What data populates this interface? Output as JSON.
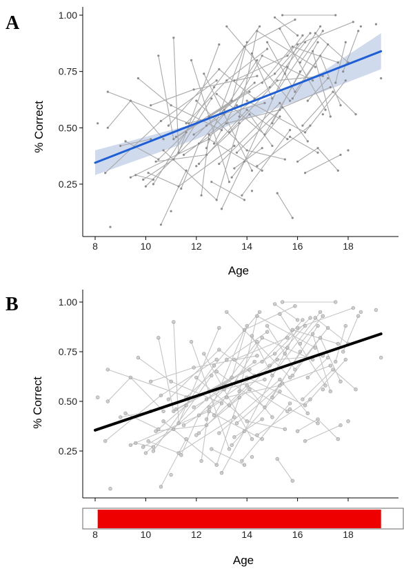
{
  "panels": [
    {
      "label": "A",
      "ylabel": "% Correct",
      "xlabel": "Age",
      "x_ticks": [
        "8",
        "10",
        "12",
        "14",
        "16",
        "18"
      ],
      "y_ticks": [
        "0.25",
        "0.50",
        "0.75",
        "1.00"
      ]
    },
    {
      "label": "B",
      "ylabel": "% Correct",
      "xlabel": "Age",
      "x_ticks": [
        "8",
        "10",
        "12",
        "14",
        "16",
        "18"
      ],
      "y_ticks": [
        "0.25",
        "0.50",
        "0.75",
        "1.00"
      ]
    }
  ],
  "colors": {
    "panel_a_points": "#8c8c8c",
    "panel_a_lines": "#a8a8a8",
    "panel_a_fit": "#1f5fd6",
    "panel_a_ci": "#c8d4ea",
    "panel_b_points": "#bdbdbd",
    "panel_b_lines": "#c4c4c4",
    "panel_b_fit": "#000000",
    "age_range_bar": "#ee0000"
  },
  "chart_data": [
    {
      "type": "scatter",
      "ylabel": "% Correct",
      "xlabel": "Age",
      "xlim": [
        7.7,
        19.5
      ],
      "ylim": [
        0.03,
        1.03
      ],
      "x_ticks": [
        8,
        10,
        12,
        14,
        16,
        18
      ],
      "y_ticks": [
        0.25,
        0.5,
        0.75,
        1.0
      ],
      "grid": false,
      "points": "longitudinal observations",
      "subjects": [
        {
          "x": [
            8.1
          ],
          "y": [
            0.52
          ]
        },
        {
          "x": [
            8.5,
            11.7,
            14.7
          ],
          "y": [
            0.66,
            0.52,
            0.61
          ]
        },
        {
          "x": [
            8.6
          ],
          "y": [
            0.06
          ]
        },
        {
          "x": [
            8.4,
            10.6,
            12.8
          ],
          "y": [
            0.3,
            0.53,
            0.71
          ]
        },
        {
          "x": [
            8.5,
            9.4,
            10.7
          ],
          "y": [
            0.5,
            0.62,
            0.45
          ]
        },
        {
          "x": [
            9.2,
            10.5,
            11.6
          ],
          "y": [
            0.44,
            0.36,
            0.48
          ]
        },
        {
          "x": [
            9.4,
            12.5,
            14.6
          ],
          "y": [
            0.28,
            0.45,
            0.31
          ]
        },
        {
          "x": [
            9.7,
            11.0,
            13.0
          ],
          "y": [
            0.72,
            0.6,
            0.49
          ]
        },
        {
          "x": [
            9.9,
            11.1,
            12.6
          ],
          "y": [
            0.27,
            0.36,
            0.63
          ]
        },
        {
          "x": [
            10.0,
            12.4,
            14.3
          ],
          "y": [
            0.24,
            0.51,
            0.7
          ]
        },
        {
          "x": [
            10.1,
            11.3,
            13.5
          ],
          "y": [
            0.3,
            0.24,
            0.42
          ]
        },
        {
          "x": [
            10.2,
            11.9,
            14.4
          ],
          "y": [
            0.6,
            0.67,
            0.73
          ]
        },
        {
          "x": [
            10.3,
            12.7,
            14.5
          ],
          "y": [
            0.25,
            0.68,
            0.95
          ]
        },
        {
          "x": [
            10.4,
            12.4,
            14.1,
            15.0
          ],
          "y": [
            0.35,
            0.38,
            0.56,
            0.42
          ]
        },
        {
          "x": [
            10.5,
            11.1,
            14.1
          ],
          "y": [
            0.82,
            0.45,
            0.66
          ]
        },
        {
          "x": [
            10.6,
            11.6
          ],
          "y": [
            0.07,
            0.31
          ]
        },
        {
          "x": [
            10.7,
            12.8,
            13.7
          ],
          "y": [
            0.4,
            0.18,
            0.52
          ]
        },
        {
          "x": [
            10.9,
            12.9,
            14.3
          ],
          "y": [
            0.51,
            0.76,
            0.63
          ]
        },
        {
          "x": [
            11.1,
            11.3,
            12.9
          ],
          "y": [
            0.9,
            0.39,
            0.87
          ]
        },
        {
          "x": [
            11.2,
            13.4,
            14.0
          ],
          "y": [
            0.46,
            0.62,
            0.88
          ]
        },
        {
          "x": [
            11.4,
            12.1,
            13.1
          ],
          "y": [
            0.23,
            0.43,
            0.56
          ]
        },
        {
          "x": [
            11.5,
            13.2,
            15.3
          ],
          "y": [
            0.38,
            0.52,
            0.58
          ]
        },
        {
          "x": [
            11.6,
            13.2,
            14.8
          ],
          "y": [
            0.52,
            0.71,
            0.85
          ]
        },
        {
          "x": [
            11.8,
            13.3
          ],
          "y": [
            0.8,
            0.26
          ]
        },
        {
          "x": [
            11.9,
            13.6
          ],
          "y": [
            0.47,
            0.6
          ]
        },
        {
          "x": [
            12.0,
            14.0,
            15.5
          ],
          "y": [
            0.62,
            0.4,
            0.36
          ]
        },
        {
          "x": [
            12.1,
            14.0,
            15.6
          ],
          "y": [
            0.34,
            0.58,
            0.45
          ]
        },
        {
          "x": [
            12.2,
            12.5,
            14.9,
            16.3
          ],
          "y": [
            0.2,
            0.47,
            0.68,
            0.88
          ]
        },
        {
          "x": [
            12.3,
            14.2
          ],
          "y": [
            0.74,
            0.31
          ]
        },
        {
          "x": [
            12.4,
            13.9,
            15.9
          ],
          "y": [
            0.41,
            0.86,
            0.98
          ]
        },
        {
          "x": [
            12.5,
            15.1,
            16.5
          ],
          "y": [
            0.55,
            0.74,
            0.92
          ]
        },
        {
          "x": [
            12.6,
            13.9
          ],
          "y": [
            0.26,
            0.18
          ]
        },
        {
          "x": [
            12.7,
            14.6,
            16.6
          ],
          "y": [
            0.43,
            0.82,
            0.71
          ]
        },
        {
          "x": [
            12.8,
            14.7,
            16.8
          ],
          "y": [
            0.65,
            0.47,
            0.88
          ]
        },
        {
          "x": [
            12.9,
            15.3,
            16.4
          ],
          "y": [
            0.34,
            0.61,
            0.44
          ]
        },
        {
          "x": [
            13.0,
            13.9,
            15.6
          ],
          "y": [
            0.14,
            0.35,
            0.77
          ]
        },
        {
          "x": [
            13.1,
            14.4
          ],
          "y": [
            0.58,
            0.8
          ]
        },
        {
          "x": [
            13.2,
            15.7
          ],
          "y": [
            0.95,
            0.62
          ]
        },
        {
          "x": [
            13.3,
            15.2,
            17.0
          ],
          "y": [
            0.48,
            0.71,
            0.73
          ]
        },
        {
          "x": [
            13.4,
            15.3
          ],
          "y": [
            0.28,
            0.55
          ]
        },
        {
          "x": [
            13.5,
            15.6,
            16.2
          ],
          "y": [
            0.71,
            0.82,
            0.91
          ]
        },
        {
          "x": [
            13.6,
            15.4,
            17.3
          ],
          "y": [
            0.39,
            0.59,
            0.68
          ]
        },
        {
          "x": [
            13.7,
            14.4,
            16.7
          ],
          "y": [
            0.55,
            0.93,
            0.77
          ]
        },
        {
          "x": [
            13.8,
            15.7
          ],
          "y": [
            0.2,
            0.49
          ]
        },
        {
          "x": [
            14.0,
            16.3,
            17.9
          ],
          "y": [
            0.62,
            0.48,
            0.71
          ]
        },
        {
          "x": [
            14.2,
            15.0,
            16.9
          ],
          "y": [
            0.83,
            0.63,
            0.95
          ]
        },
        {
          "x": [
            14.4,
            16.5
          ],
          "y": [
            0.33,
            0.51
          ]
        },
        {
          "x": [
            14.6,
            15.8,
            17.6
          ],
          "y": [
            0.7,
            0.86,
            0.79
          ]
        },
        {
          "x": [
            14.8,
            15.9,
            17.2
          ],
          "y": [
            0.88,
            0.66,
            0.87
          ]
        },
        {
          "x": [
            15.0,
            16.1
          ],
          "y": [
            0.52,
            0.75
          ]
        },
        {
          "x": [
            15.2,
            15.8
          ],
          "y": [
            0.21,
            0.1
          ]
        },
        {
          "x": [
            15.3,
            17.1
          ],
          "y": [
            0.94,
            0.58
          ]
        },
        {
          "x": [
            15.5,
            16.0,
            18.2
          ],
          "y": [
            0.74,
            0.87,
            0.97
          ]
        },
        {
          "x": [
            15.7,
            16.8
          ],
          "y": [
            0.46,
            0.39
          ]
        },
        {
          "x": [
            15.8,
            16.9,
            17.7
          ],
          "y": [
            0.63,
            0.82,
            0.6
          ]
        },
        {
          "x": [
            16.0,
            16.8,
            17.6
          ],
          "y": [
            0.35,
            0.41,
            0.31
          ]
        },
        {
          "x": [
            16.1,
            17.0
          ],
          "y": [
            0.79,
            0.93
          ]
        },
        {
          "x": [
            16.2,
            17.4,
            18.3
          ],
          "y": [
            0.51,
            0.66,
            0.56
          ]
        },
        {
          "x": [
            16.4,
            17.2
          ],
          "y": [
            0.62,
            0.72
          ]
        },
        {
          "x": [
            16.6,
            17.3
          ],
          "y": [
            0.84,
            0.55
          ]
        },
        {
          "x": [
            16.7,
            18.0
          ],
          "y": [
            0.92,
            0.79
          ]
        },
        {
          "x": [
            17.5,
            17.9
          ],
          "y": [
            0.7,
            0.88
          ]
        },
        {
          "x": [
            17.8,
            18.4
          ],
          "y": [
            0.75,
            0.93
          ]
        },
        {
          "x": [
            15.4,
            17.5
          ],
          "y": [
            1.0,
            1.0
          ]
        },
        {
          "x": [
            15.1,
            16.0
          ],
          "y": [
            0.99,
            0.91
          ]
        },
        {
          "x": [
            16.3,
            17.7
          ],
          "y": [
            0.3,
            0.38
          ]
        },
        {
          "x": [
            9.0,
            10.2
          ],
          "y": [
            0.42,
            0.45
          ]
        },
        {
          "x": [
            9.6,
            10.3
          ],
          "y": [
            0.29,
            0.27
          ]
        },
        {
          "x": [
            13.5,
            14.6
          ],
          "y": [
            0.32,
            0.41
          ]
        },
        {
          "x": [
            18.5
          ],
          "y": [
            0.95
          ]
        },
        {
          "x": [
            19.1
          ],
          "y": [
            0.96
          ]
        },
        {
          "x": [
            19.3
          ],
          "y": [
            0.72
          ]
        },
        {
          "x": [
            17.0
          ],
          "y": [
            0.56
          ]
        },
        {
          "x": [
            18.0
          ],
          "y": [
            0.4
          ]
        },
        {
          "x": [
            14.2
          ],
          "y": [
            0.22
          ]
        },
        {
          "x": [
            11.0
          ],
          "y": [
            0.13
          ]
        },
        {
          "x": [
            12.0
          ],
          "y": [
            0.33
          ]
        }
      ],
      "fit": {
        "x": [
          8.0,
          19.3
        ],
        "y": [
          0.345,
          0.84
        ]
      },
      "confidence_band": {
        "x": [
          8.0,
          10.0,
          12.0,
          13.5,
          15.0,
          17.0,
          19.3
        ],
        "lower": [
          0.29,
          0.37,
          0.45,
          0.52,
          0.58,
          0.66,
          0.76
        ],
        "upper": [
          0.4,
          0.46,
          0.52,
          0.57,
          0.64,
          0.75,
          0.92
        ]
      }
    },
    {
      "type": "scatter",
      "ylabel": "% Correct",
      "xlabel": "Age",
      "xlim": [
        7.7,
        19.5
      ],
      "ylim": [
        0.03,
        1.03
      ],
      "x_ticks": [
        8,
        10,
        12,
        14,
        16,
        18
      ],
      "y_ticks": [
        0.25,
        0.5,
        0.75,
        1.0
      ],
      "grid": false,
      "points": "same observations as panel A",
      "fit": {
        "x": [
          8.0,
          19.3
        ],
        "y": [
          0.355,
          0.84
        ]
      },
      "age_range_bar": {
        "x": [
          8.1,
          19.3
        ]
      }
    }
  ]
}
